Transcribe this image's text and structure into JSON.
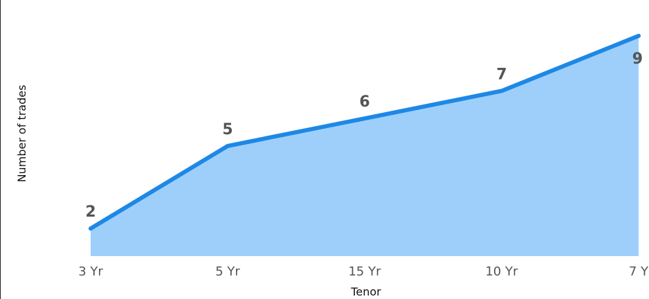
{
  "chart_data": {
    "type": "area",
    "categories": [
      "3 Yr",
      "5 Yr",
      "15 Yr",
      "10 Yr",
      "7 Y"
    ],
    "values": [
      2,
      5,
      6,
      7,
      9
    ],
    "xlabel": "Tenor",
    "ylabel": "Number of trades",
    "ylim": [
      1,
      9.8
    ],
    "grid": false,
    "legend": "none",
    "colors": {
      "line": "#1e88e5",
      "fill": "#9ecffb",
      "labels": "#555555"
    }
  }
}
